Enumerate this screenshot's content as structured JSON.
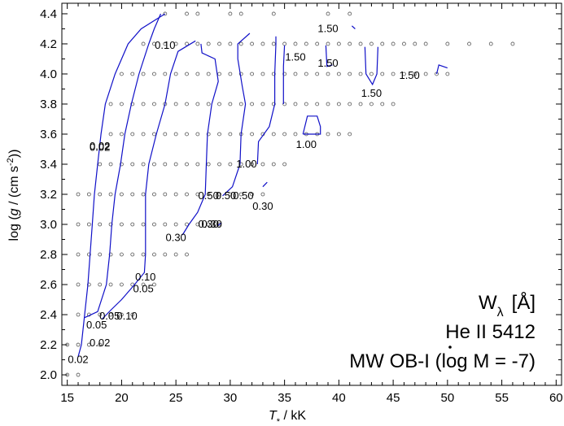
{
  "chart_data": {
    "type": "scatter",
    "xlabel_main": "T",
    "xlabel_sub": "*",
    "xlabel_unit": " / kK",
    "ylabel": "log (g / (cm s-2))",
    "ylabel_parts": {
      "pre": "log (",
      "g": "g",
      "mid": " / (cm s",
      "sup": "-2",
      "post": "))"
    },
    "xlim": [
      14.5,
      60.5
    ],
    "ylim": [
      1.93,
      4.47
    ],
    "xticks": [
      15,
      20,
      25,
      30,
      35,
      40,
      45,
      50,
      55,
      60
    ],
    "yticks": [
      2.0,
      2.2,
      2.4,
      2.6,
      2.8,
      3.0,
      3.2,
      3.4,
      3.6,
      3.8,
      4.0,
      4.2,
      4.4
    ],
    "ytick_labels": [
      "2.0",
      "2.2",
      "2.4",
      "2.6",
      "2.8",
      "3.0",
      "3.2",
      "3.4",
      "3.6",
      "3.8",
      "4.0",
      "4.2",
      "4.4"
    ],
    "annotations": {
      "line1_main": "W",
      "line1_sub": "λ",
      "line1_unit": "[Å]",
      "line2": "He II 5412",
      "line3_pre": "MW OB-I (log ",
      "line3_mdot": "M",
      "line3_post": " = -7)"
    },
    "grid_points": [
      {
        "logg": 4.4,
        "teff": [
          24,
          26,
          27,
          30,
          31,
          34,
          39,
          41
        ]
      },
      {
        "logg": 4.2,
        "teff": [
          22,
          23,
          24,
          25,
          26,
          27,
          28,
          29,
          30,
          31,
          32,
          33,
          34,
          35,
          36,
          37,
          38,
          39,
          40,
          41,
          42,
          43,
          44,
          45,
          46,
          47,
          48,
          50,
          52,
          54,
          56
        ]
      },
      {
        "logg": 4.0,
        "teff": [
          20,
          21,
          22,
          23,
          24,
          25,
          26,
          27,
          28,
          29,
          30,
          31,
          32,
          33,
          34,
          35,
          36,
          37,
          38,
          39,
          40,
          41,
          42,
          43,
          44,
          45,
          46,
          47,
          48,
          49,
          50
        ]
      },
      {
        "logg": 3.8,
        "teff": [
          19,
          20,
          21,
          22,
          23,
          24,
          25,
          26,
          27,
          28,
          29,
          30,
          31,
          32,
          33,
          34,
          35,
          36,
          37,
          38,
          39,
          40,
          41,
          42,
          43,
          44,
          45
        ]
      },
      {
        "logg": 3.6,
        "teff": [
          19,
          20,
          21,
          22,
          23,
          24,
          25,
          26,
          27,
          28,
          29,
          30,
          31,
          32,
          33,
          34,
          35,
          36,
          37,
          38,
          39,
          40,
          41
        ]
      },
      {
        "logg": 3.4,
        "teff": [
          18,
          19,
          20,
          21,
          22,
          23,
          24,
          25,
          26,
          27,
          28,
          29,
          30,
          31,
          32,
          33,
          34,
          35
        ]
      },
      {
        "logg": 3.2,
        "teff": [
          16,
          17,
          18,
          19,
          20,
          21,
          22,
          23,
          24,
          25,
          26,
          27,
          28,
          29,
          30,
          31,
          32,
          33
        ]
      },
      {
        "logg": 3.0,
        "teff": [
          16,
          17,
          18,
          19,
          20,
          21,
          22,
          23,
          24,
          25,
          26,
          27,
          28,
          29
        ]
      },
      {
        "logg": 2.8,
        "teff": [
          16,
          17,
          18,
          19,
          20,
          21,
          22,
          23,
          24,
          25,
          26
        ]
      },
      {
        "logg": 2.6,
        "teff": [
          16,
          17,
          18,
          19,
          20,
          21,
          22,
          23
        ]
      },
      {
        "logg": 2.4,
        "teff": [
          16,
          17,
          18,
          19,
          20,
          21
        ]
      },
      {
        "logg": 2.2,
        "teff": [
          15,
          16,
          17,
          18
        ]
      },
      {
        "logg": 2.0,
        "teff": [
          15,
          16
        ]
      }
    ],
    "contours": [
      {
        "level": "0.02",
        "lines": [
          [
            [
              16.0,
              2.12
            ],
            [
              16.3,
              2.2
            ],
            [
              16.6,
              2.4
            ],
            [
              16.9,
              2.6
            ],
            [
              17.1,
              2.8
            ],
            [
              17.3,
              3.0
            ],
            [
              17.5,
              3.2
            ],
            [
              17.8,
              3.4
            ],
            [
              18.1,
              3.6
            ],
            [
              18.5,
              3.8
            ],
            [
              19.4,
              4.0
            ],
            [
              20.6,
              4.2
            ],
            [
              21.8,
              4.3
            ],
            [
              24.0,
              4.4
            ]
          ]
        ]
      },
      {
        "level": "0.05",
        "lines": [
          [
            [
              16.6,
              2.38
            ],
            [
              17.8,
              2.42
            ],
            [
              18.6,
              2.6
            ],
            [
              18.9,
              2.8
            ],
            [
              19.1,
              3.0
            ],
            [
              19.4,
              3.2
            ],
            [
              19.9,
              3.4
            ],
            [
              20.3,
              3.6
            ],
            [
              20.9,
              3.8
            ],
            [
              21.6,
              4.0
            ],
            [
              22.5,
              4.2
            ],
            [
              23.0,
              4.3
            ],
            [
              23.6,
              4.4
            ]
          ]
        ]
      },
      {
        "level": "0.10",
        "lines": [
          [
            [
              18.2,
              2.37
            ],
            [
              19.0,
              2.43
            ],
            [
              20.0,
              2.5
            ],
            [
              21.2,
              2.6
            ],
            [
              22.1,
              2.68
            ],
            [
              22.2,
              2.8
            ],
            [
              22.2,
              3.0
            ],
            [
              22.2,
              3.2
            ],
            [
              22.5,
              3.4
            ],
            [
              23.2,
              3.6
            ],
            [
              24.0,
              3.8
            ],
            [
              24.5,
              4.0
            ],
            [
              25.2,
              4.15
            ],
            [
              26.8,
              4.22
            ]
          ]
        ]
      },
      {
        "level": "0.30",
        "lines": [
          [
            [
              25.6,
              2.93
            ],
            [
              26.2,
              3.0
            ],
            [
              27.0,
              3.08
            ],
            [
              27.7,
              3.2
            ],
            [
              27.8,
              3.4
            ],
            [
              27.9,
              3.6
            ],
            [
              28.3,
              3.8
            ],
            [
              28.9,
              3.95
            ],
            [
              28.6,
              4.1
            ],
            [
              27.4,
              4.14
            ],
            [
              27.3,
              4.2
            ]
          ],
          [
            [
              28.8,
              2.99
            ],
            [
              29.2,
              3.01
            ]
          ],
          [
            [
              33.0,
              3.25
            ],
            [
              33.4,
              3.28
            ]
          ]
        ]
      },
      {
        "level": "0.50",
        "lines": [
          [
            [
              29.3,
              3.19
            ],
            [
              30.2,
              3.25
            ],
            [
              30.9,
              3.4
            ],
            [
              31.0,
              3.6
            ],
            [
              31.4,
              3.8
            ],
            [
              31.1,
              3.92
            ],
            [
              30.7,
              4.1
            ],
            [
              30.7,
              4.2
            ],
            [
              31.8,
              4.27
            ]
          ]
        ]
      },
      {
        "level": "1.00",
        "lines": [
          [
            [
              32.5,
              3.4
            ],
            [
              32.6,
              3.55
            ],
            [
              33.6,
              3.65
            ],
            [
              34.1,
              3.8
            ],
            [
              34.1,
              4.0
            ],
            [
              34.2,
              4.2
            ],
            [
              34.2,
              4.25
            ]
          ],
          [
            [
              36.7,
              3.6
            ],
            [
              37.1,
              3.72
            ],
            [
              38.0,
              3.72
            ],
            [
              38.3,
              3.65
            ],
            [
              38.3,
              3.6
            ],
            [
              36.7,
              3.6
            ]
          ]
        ]
      },
      {
        "level": "1.50",
        "lines": [
          [
            [
              35.0,
              4.19
            ],
            [
              34.9,
              4.05
            ],
            [
              34.9,
              3.8
            ]
          ],
          [
            [
              38.8,
              4.19
            ],
            [
              38.9,
              4.05
            ],
            [
              39.4,
              4.06
            ]
          ],
          [
            [
              41.2,
              4.32
            ],
            [
              41.5,
              4.3
            ]
          ],
          [
            [
              42.4,
              4.18
            ],
            [
              42.5,
              4.0
            ],
            [
              43.1,
              3.93
            ],
            [
              43.5,
              4.0
            ],
            [
              43.6,
              4.18
            ]
          ],
          [
            [
              49.0,
              4.0
            ],
            [
              49.2,
              4.06
            ],
            [
              50.0,
              4.04
            ]
          ]
        ]
      }
    ],
    "labels": [
      {
        "text": "0.02",
        "x": 18.0,
        "y": 3.52
      },
      {
        "text": "0.02",
        "x": 18.0,
        "y": 3.51
      },
      {
        "text": "0.02",
        "x": 18.0,
        "y": 2.21
      },
      {
        "text": "0.02",
        "x": 16.0,
        "y": 2.1
      },
      {
        "text": "0.05",
        "x": 18.9,
        "y": 2.39
      },
      {
        "text": "0.05",
        "x": 17.7,
        "y": 2.33
      },
      {
        "text": "0.05",
        "x": 22.0,
        "y": 2.57
      },
      {
        "text": "0.10",
        "x": 20.5,
        "y": 2.39
      },
      {
        "text": "0.10",
        "x": 22.2,
        "y": 2.65
      },
      {
        "text": "0.10",
        "x": 24.0,
        "y": 4.19
      },
      {
        "text": "0.30",
        "x": 25.0,
        "y": 2.91
      },
      {
        "text": "0.30",
        "x": 28.0,
        "y": 3.0
      },
      {
        "text": "0.30",
        "x": 28.3,
        "y": 3.0
      },
      {
        "text": "0.30",
        "x": 33.0,
        "y": 3.12
      },
      {
        "text": "0.50",
        "x": 28.0,
        "y": 3.19
      },
      {
        "text": "0.50",
        "x": 29.6,
        "y": 3.19
      },
      {
        "text": "0.50",
        "x": 31.2,
        "y": 3.19
      },
      {
        "text": "1.00",
        "x": 31.5,
        "y": 3.4
      },
      {
        "text": "1.00",
        "x": 37.0,
        "y": 3.53
      },
      {
        "text": "1.50",
        "x": 39.0,
        "y": 4.3
      },
      {
        "text": "1.50",
        "x": 36.0,
        "y": 4.11
      },
      {
        "text": "1.50",
        "x": 39.0,
        "y": 4.07
      },
      {
        "text": "1.50",
        "x": 43.0,
        "y": 3.87
      },
      {
        "text": "1.50",
        "x": 46.5,
        "y": 3.99
      }
    ],
    "colors": {
      "contour": "#1010c8",
      "points": "#555555",
      "axes": "#000000"
    }
  }
}
